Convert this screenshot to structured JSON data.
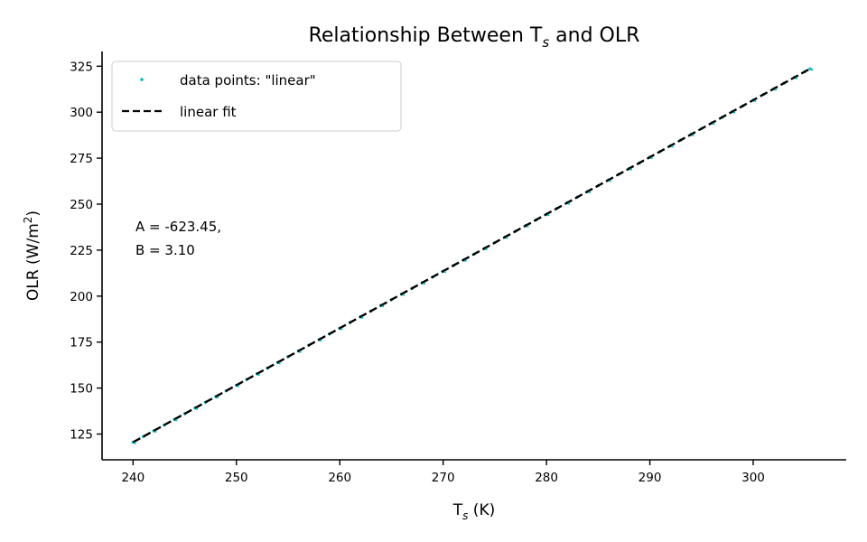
{
  "chart_data": {
    "type": "scatter",
    "title": {
      "main": "Relationship Between T",
      "sub": "s",
      "tail": " and OLR"
    },
    "xlabel": {
      "main": "T",
      "sub": "s",
      "tail": " (K)"
    },
    "ylabel": {
      "main": "OLR (W/m",
      "sup": "2",
      "tail": ")"
    },
    "xlim": [
      237,
      309
    ],
    "ylim": [
      111,
      333
    ],
    "xticks": [
      240,
      250,
      260,
      270,
      280,
      290,
      300
    ],
    "yticks": [
      125,
      150,
      175,
      200,
      225,
      250,
      275,
      300,
      325
    ],
    "grid": false,
    "legend_position": "top-left",
    "series": [
      {
        "name": "data points: \"linear\"",
        "kind": "points",
        "color": "#00BFBF",
        "x_start": 240,
        "x_end": 305.5,
        "x_step": 1,
        "intercept": -623.45,
        "slope": 3.1
      },
      {
        "name": "linear fit",
        "kind": "line",
        "color": "#000000",
        "style": "dashed",
        "x": [
          240,
          305.5
        ],
        "intercept": -623.45,
        "slope": 3.1
      }
    ],
    "annotation": [
      "A = -623.45,",
      "B = 3.10"
    ]
  }
}
